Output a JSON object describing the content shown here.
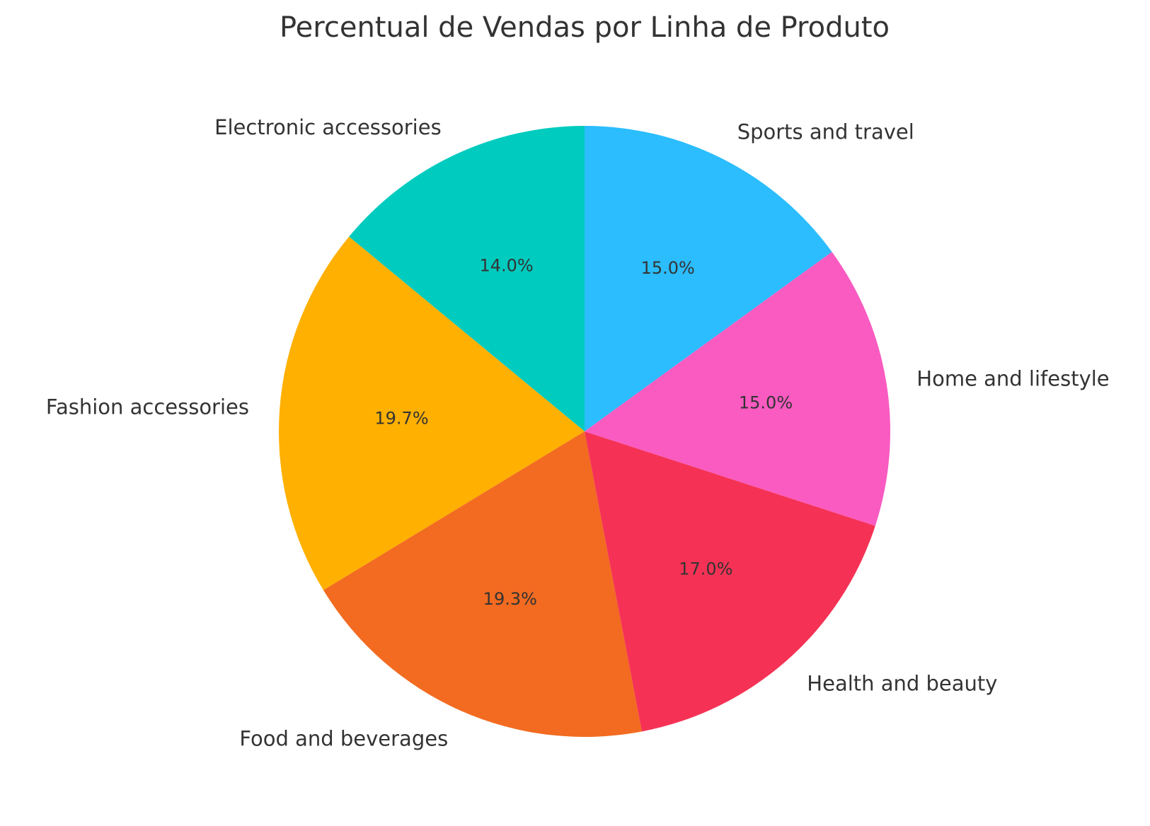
{
  "chart_data": {
    "type": "pie",
    "title": "Percentual de Vendas por Linha de Produto",
    "start_angle_deg": 90,
    "direction": "counterclockwise",
    "slices": [
      {
        "label": "Electronic accessories",
        "value": 14.0,
        "pct_text": "14.0%",
        "color": "#00CBBF"
      },
      {
        "label": "Fashion accessories",
        "value": 19.7,
        "pct_text": "19.7%",
        "color": "#FFB000"
      },
      {
        "label": "Food and beverages",
        "value": 19.3,
        "pct_text": "19.3%",
        "color": "#F26B21"
      },
      {
        "label": "Health and beauty",
        "value": 17.0,
        "pct_text": "17.0%",
        "color": "#F53255"
      },
      {
        "label": "Home and lifestyle",
        "value": 15.0,
        "pct_text": "15.0%",
        "color": "#F95BC1"
      },
      {
        "label": "Sports and travel",
        "value": 15.0,
        "pct_text": "15.0%",
        "color": "#2BBDFE"
      }
    ]
  }
}
